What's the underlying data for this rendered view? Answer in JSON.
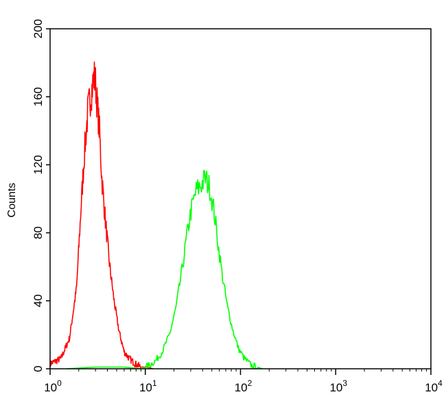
{
  "chart_data": {
    "type": "line",
    "title": "",
    "xlabel": "",
    "ylabel": "Counts",
    "x_scale": "log",
    "xlim": [
      1,
      10000
    ],
    "ylim": [
      0,
      200
    ],
    "grid": false,
    "x_ticks": [
      {
        "value": 1,
        "base": "10",
        "exp": "0"
      },
      {
        "value": 10,
        "base": "10",
        "exp": "1"
      },
      {
        "value": 100,
        "base": "10",
        "exp": "2"
      },
      {
        "value": 1000,
        "base": "10",
        "exp": "3"
      },
      {
        "value": 10000,
        "base": "10",
        "exp": "4"
      }
    ],
    "y_ticks": [
      0,
      40,
      80,
      120,
      160,
      200
    ],
    "series": [
      {
        "color": "#ff0000",
        "x": [
          1.0,
          1.3,
          1.6,
          1.9,
          2.1,
          2.3,
          2.5,
          2.7,
          2.9,
          3.0,
          3.1,
          3.3,
          3.5,
          3.8,
          4.2,
          4.7,
          5.3,
          6.0,
          6.8,
          7.8,
          9.0,
          10.5,
          12.0
        ],
        "y": [
          3,
          6,
          18,
          48,
          92,
          128,
          152,
          162,
          172,
          168,
          158,
          140,
          112,
          88,
          62,
          40,
          22,
          10,
          6,
          3,
          1,
          1,
          0
        ]
      },
      {
        "color": "#00ff00",
        "x": [
          1.5,
          3,
          6,
          9,
          11,
          13,
          15,
          18,
          21,
          24,
          27,
          30,
          34,
          38,
          43,
          48,
          53,
          58,
          64,
          72,
          82,
          95,
          110,
          130,
          150,
          170
        ],
        "y": [
          0,
          1,
          1,
          0,
          2,
          5,
          10,
          20,
          36,
          56,
          76,
          92,
          104,
          108,
          112,
          106,
          92,
          74,
          56,
          38,
          24,
          12,
          6,
          2,
          1,
          0
        ]
      }
    ]
  }
}
